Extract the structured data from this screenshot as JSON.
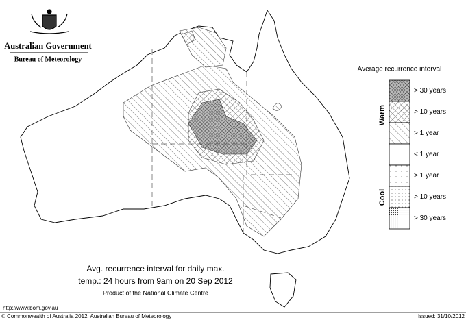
{
  "header": {
    "government": "Australian Government",
    "bureau": "Bureau of Meteorology"
  },
  "legend": {
    "title": "Average recurrence interval",
    "warm_label": "Warm",
    "cool_label": "Cool",
    "items": [
      "> 30 years",
      "> 10 years",
      "> 1 year",
      "< 1 year",
      "> 1 year",
      "> 10 years",
      "> 30 years"
    ]
  },
  "caption": {
    "line1": "Avg. recurrence interval for daily max.",
    "line2": "temp.: 24 hours from 9am on 20 Sep 2012",
    "line3": "Product of the National Climate Centre"
  },
  "footer": {
    "url": "http://www.bom.gov.au",
    "copyright": "© Commonwealth of Australia 2012, Australian Bureau of Meteorology",
    "issued": "Issued: 31/10/2012"
  }
}
